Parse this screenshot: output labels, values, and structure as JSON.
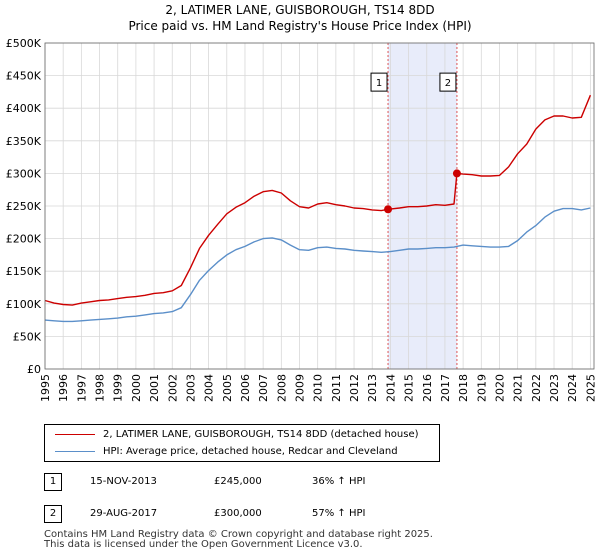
{
  "title": "2, LATIMER LANE, GUISBOROUGH, TS14 8DD",
  "subtitle": "Price paid vs. HM Land Registry's House Price Index (HPI)",
  "chart_data": {
    "type": "line",
    "title": "2, LATIMER LANE, GUISBOROUGH, TS14 8DD",
    "subtitle": "Price paid vs. HM Land Registry's House Price Index (HPI)",
    "xlabel": "",
    "ylabel": "",
    "xlim": [
      1995,
      2025.2
    ],
    "ylim": [
      0,
      500000
    ],
    "x_ticks": [
      1995,
      1996,
      1997,
      1998,
      1999,
      2000,
      2001,
      2002,
      2003,
      2004,
      2005,
      2006,
      2007,
      2008,
      2009,
      2010,
      2011,
      2012,
      2013,
      2014,
      2015,
      2016,
      2017,
      2018,
      2019,
      2020,
      2021,
      2022,
      2023,
      2024,
      2025
    ],
    "y_ticks": [
      {
        "value": 0,
        "label": "£0"
      },
      {
        "value": 50000,
        "label": "£50K"
      },
      {
        "value": 100000,
        "label": "£100K"
      },
      {
        "value": 150000,
        "label": "£150K"
      },
      {
        "value": 200000,
        "label": "£200K"
      },
      {
        "value": 250000,
        "label": "£250K"
      },
      {
        "value": 300000,
        "label": "£300K"
      },
      {
        "value": 350000,
        "label": "£350K"
      },
      {
        "value": 400000,
        "label": "£400K"
      },
      {
        "value": 450000,
        "label": "£450K"
      },
      {
        "value": 500000,
        "label": "£500K"
      }
    ],
    "grid": true,
    "highlight_span": {
      "from": 2013.87,
      "to": 2017.66,
      "color": "#e8ecfa"
    },
    "series": [
      {
        "name": "2, LATIMER LANE, GUISBOROUGH, TS14 8DD (detached house)",
        "color": "#cc0000",
        "x": [
          1995.0,
          1995.5,
          1996.0,
          1996.5,
          1997.0,
          1997.5,
          1998.0,
          1998.5,
          1999.0,
          1999.5,
          2000.0,
          2000.5,
          2001.0,
          2001.5,
          2002.0,
          2002.5,
          2003.0,
          2003.5,
          2004.0,
          2004.5,
          2005.0,
          2005.5,
          2006.0,
          2006.5,
          2007.0,
          2007.5,
          2008.0,
          2008.5,
          2009.0,
          2009.5,
          2010.0,
          2010.5,
          2011.0,
          2011.5,
          2012.0,
          2012.5,
          2013.0,
          2013.5,
          2013.87,
          2014.5,
          2015.0,
          2015.5,
          2016.0,
          2016.5,
          2017.0,
          2017.5,
          2017.66,
          2018.0,
          2018.5,
          2019.0,
          2019.5,
          2020.0,
          2020.5,
          2021.0,
          2021.5,
          2022.0,
          2022.5,
          2023.0,
          2023.5,
          2024.0,
          2024.5,
          2025.0
        ],
        "y": [
          105000,
          101000,
          99000,
          98000,
          101000,
          103000,
          105000,
          106000,
          108000,
          110000,
          111000,
          113000,
          116000,
          117000,
          120000,
          128000,
          155000,
          185000,
          205000,
          222000,
          238000,
          248000,
          255000,
          265000,
          272000,
          274000,
          270000,
          258000,
          249000,
          247000,
          253000,
          255000,
          252000,
          250000,
          247000,
          246000,
          244000,
          243000,
          245000,
          247000,
          249000,
          249000,
          250000,
          252000,
          251000,
          253000,
          300000,
          299000,
          298000,
          296000,
          296000,
          297000,
          310000,
          330000,
          345000,
          368000,
          382000,
          388000,
          388000,
          385000,
          386000,
          420000
        ]
      },
      {
        "name": "HPI: Average price, detached house, Redcar and Cleveland",
        "color": "#5b8fc9",
        "x": [
          1995.0,
          1995.5,
          1996.0,
          1996.5,
          1997.0,
          1997.5,
          1998.0,
          1998.5,
          1999.0,
          1999.5,
          2000.0,
          2000.5,
          2001.0,
          2001.5,
          2002.0,
          2002.5,
          2003.0,
          2003.5,
          2004.0,
          2004.5,
          2005.0,
          2005.5,
          2006.0,
          2006.5,
          2007.0,
          2007.5,
          2008.0,
          2008.5,
          2009.0,
          2009.5,
          2010.0,
          2010.5,
          2011.0,
          2011.5,
          2012.0,
          2012.5,
          2013.0,
          2013.5,
          2014.0,
          2014.5,
          2015.0,
          2015.5,
          2016.0,
          2016.5,
          2017.0,
          2017.5,
          2018.0,
          2018.5,
          2019.0,
          2019.5,
          2020.0,
          2020.5,
          2021.0,
          2021.5,
          2022.0,
          2022.5,
          2023.0,
          2023.5,
          2024.0,
          2024.5,
          2025.0
        ],
        "y": [
          75000,
          74000,
          73000,
          73000,
          74000,
          75000,
          76000,
          77000,
          78000,
          80000,
          81000,
          83000,
          85000,
          86000,
          88000,
          94000,
          114000,
          136000,
          151000,
          164000,
          175000,
          183000,
          188000,
          195000,
          200000,
          201000,
          198000,
          190000,
          183000,
          182000,
          186000,
          187000,
          185000,
          184000,
          182000,
          181000,
          180000,
          179000,
          180000,
          182000,
          184000,
          184000,
          185000,
          186000,
          186000,
          187000,
          190000,
          189000,
          188000,
          187000,
          187000,
          188000,
          197000,
          210000,
          220000,
          233000,
          242000,
          246000,
          246000,
          244000,
          247000
        ]
      }
    ],
    "transactions": [
      {
        "label": "1",
        "x": 2013.87,
        "y": 245000
      },
      {
        "label": "2",
        "x": 2017.66,
        "y": 300000
      }
    ],
    "marker_y": 440000
  },
  "legend": {
    "items": [
      {
        "label": "2, LATIMER LANE, GUISBOROUGH, TS14 8DD (detached house)",
        "color": "#cc0000"
      },
      {
        "label": "HPI: Average price, detached house, Redcar and Cleveland",
        "color": "#5b8fc9"
      }
    ]
  },
  "transactions": [
    {
      "num": "1",
      "date": "15-NOV-2013",
      "price": "£245,000",
      "hpi": "36% ↑ HPI"
    },
    {
      "num": "2",
      "date": "29-AUG-2017",
      "price": "£300,000",
      "hpi": "57% ↑ HPI"
    }
  ],
  "footer": {
    "line1": "Contains HM Land Registry data © Crown copyright and database right 2025.",
    "line2": "This data is licensed under the Open Government Licence v3.0."
  }
}
